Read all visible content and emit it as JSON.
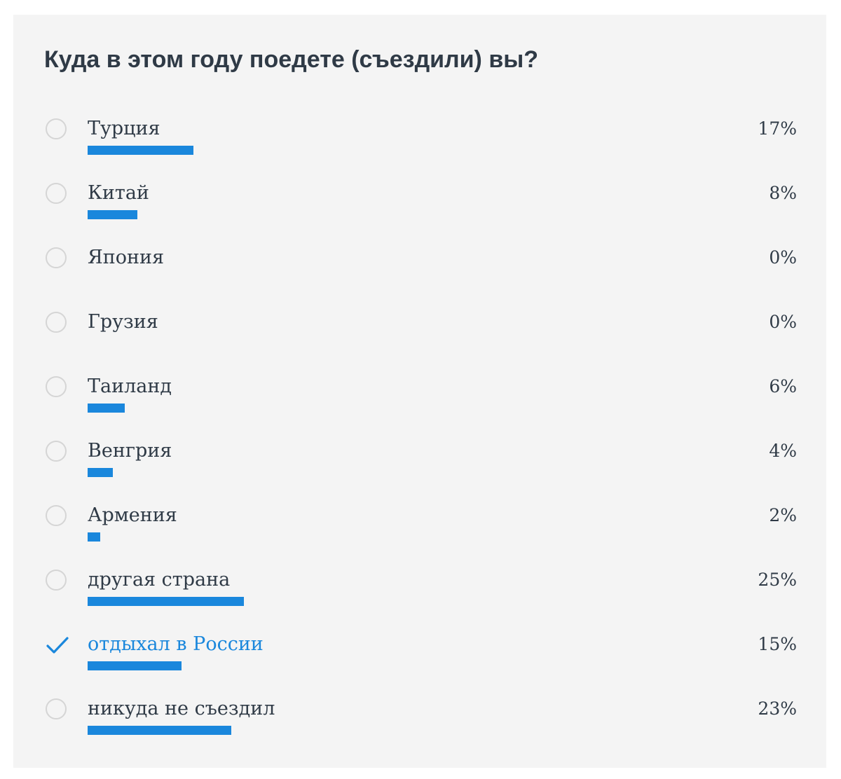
{
  "poll": {
    "title": "Куда в этом году поедете (съездили) вы?",
    "accent_color": "#1a87dc",
    "options": [
      {
        "label": "Турция",
        "percent": 17,
        "percent_text": "17%",
        "selected": false
      },
      {
        "label": "Китай",
        "percent": 8,
        "percent_text": "8%",
        "selected": false
      },
      {
        "label": "Япония",
        "percent": 0,
        "percent_text": "0%",
        "selected": false
      },
      {
        "label": "Грузия",
        "percent": 0,
        "percent_text": "0%",
        "selected": false
      },
      {
        "label": "Таиланд",
        "percent": 6,
        "percent_text": "6%",
        "selected": false
      },
      {
        "label": "Венгрия",
        "percent": 4,
        "percent_text": "4%",
        "selected": false
      },
      {
        "label": "Армения",
        "percent": 2,
        "percent_text": "2%",
        "selected": false
      },
      {
        "label": "другая страна",
        "percent": 25,
        "percent_text": "25%",
        "selected": false
      },
      {
        "label": "отдыхал в России",
        "percent": 15,
        "percent_text": "15%",
        "selected": true
      },
      {
        "label": "никуда не съездил",
        "percent": 23,
        "percent_text": "23%",
        "selected": false
      }
    ]
  }
}
